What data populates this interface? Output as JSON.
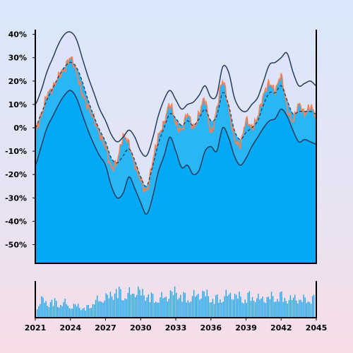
{
  "chart_data": {
    "type": "area",
    "title": "",
    "xlabel": "",
    "ylabel": "",
    "x_tick_labels": [
      "2021",
      "2024",
      "2027",
      "2030",
      "2033",
      "2036",
      "2039",
      "2042",
      "2045"
    ],
    "y_tick_labels": [
      "40%",
      "30%",
      "20%",
      "10%",
      "0%",
      "-10%",
      "-20%",
      "-30%",
      "-40%",
      "-50%"
    ],
    "xlim": [
      2021,
      2045
    ],
    "ylim": [
      -58,
      42
    ],
    "grid": false,
    "colors": {
      "filled_area": "#03a9f4",
      "band_fill": "#29b6f6",
      "upper_band_fill": "#dde3f8",
      "price_line": "#ff7f50",
      "band_lines": "#263c5c",
      "volume_bars": "#1aa7ec",
      "axis": "#000000"
    },
    "main_series": {
      "x": [
        2021.0,
        2021.5,
        2022.0,
        2022.5,
        2023.0,
        2023.5,
        2024.0,
        2024.5,
        2025.0,
        2025.5,
        2026.0,
        2026.5,
        2027.0,
        2027.5,
        2028.0,
        2028.5,
        2029.0,
        2029.5,
        2030.0,
        2030.5,
        2031.0,
        2031.5,
        2032.0,
        2032.5,
        2033.0,
        2033.5,
        2034.0,
        2034.5,
        2035.0,
        2035.5,
        2036.0,
        2036.5,
        2037.0,
        2037.5,
        2038.0,
        2038.5,
        2039.0,
        2039.5,
        2040.0,
        2040.5,
        2041.0,
        2041.5,
        2042.0,
        2042.5,
        2043.0,
        2043.5,
        2044.0,
        2044.5,
        2045.0
      ],
      "price": [
        -1,
        5,
        14,
        17,
        22,
        25,
        30,
        24,
        15,
        9,
        4,
        -3,
        -8,
        -17,
        -14,
        -4,
        -7,
        -16,
        -22,
        -27,
        -15,
        -4,
        2,
        10,
        2,
        -1,
        6,
        0,
        6,
        12,
        -2,
        8,
        20,
        9,
        -4,
        -7,
        3,
        0,
        5,
        14,
        19,
        16,
        22,
        9,
        3,
        10,
        6,
        9,
        5
      ],
      "moving_average": [
        0,
        6,
        12,
        17,
        22,
        26,
        28,
        26,
        20,
        12,
        5,
        -1,
        -6,
        -13,
        -15,
        -12,
        -9,
        -14,
        -21,
        -25,
        -17,
        -7,
        0,
        6,
        4,
        1,
        3,
        1,
        4,
        8,
        3,
        5,
        15,
        10,
        -1,
        -5,
        -2,
        0,
        3,
        10,
        15,
        15,
        18,
        12,
        6,
        7,
        7,
        7,
        6
      ],
      "upper_band": [
        10,
        16,
        24,
        30,
        36,
        40,
        41,
        38,
        30,
        22,
        15,
        8,
        3,
        -3,
        -6,
        -4,
        -1,
        -4,
        -10,
        -12,
        -5,
        5,
        12,
        16,
        12,
        8,
        10,
        11,
        14,
        18,
        13,
        14,
        26,
        24,
        13,
        8,
        7,
        10,
        13,
        20,
        27,
        28,
        30,
        32,
        24,
        18,
        19,
        20,
        18
      ],
      "lower_band": [
        -16,
        -8,
        0,
        5,
        10,
        14,
        16,
        13,
        6,
        -1,
        -7,
        -12,
        -16,
        -25,
        -30,
        -28,
        -21,
        -26,
        -32,
        -37,
        -30,
        -19,
        -12,
        -4,
        -10,
        -17,
        -16,
        -20,
        -18,
        -10,
        -8,
        -10,
        0,
        -4,
        -12,
        -16,
        -13,
        -8,
        -4,
        0,
        3,
        4,
        8,
        5,
        -1,
        -6,
        -5,
        -6,
        -7
      ]
    },
    "volume_relative": [
      0.35,
      0.55,
      0.42,
      0.5,
      0.38,
      0.45,
      0.3,
      0.4,
      0.25,
      0.35,
      0.48,
      0.55,
      0.6,
      0.72,
      0.8,
      0.65,
      0.7,
      0.82,
      0.75,
      0.68,
      0.6,
      0.55,
      0.62,
      0.7,
      0.78,
      0.66,
      0.58,
      0.63,
      0.7,
      0.74,
      0.6,
      0.55,
      0.6,
      0.68,
      0.7,
      0.62,
      0.58,
      0.65,
      0.6,
      0.55,
      0.62,
      0.6,
      0.66,
      0.58,
      0.55,
      0.6,
      0.52,
      0.58,
      0.55
    ]
  }
}
